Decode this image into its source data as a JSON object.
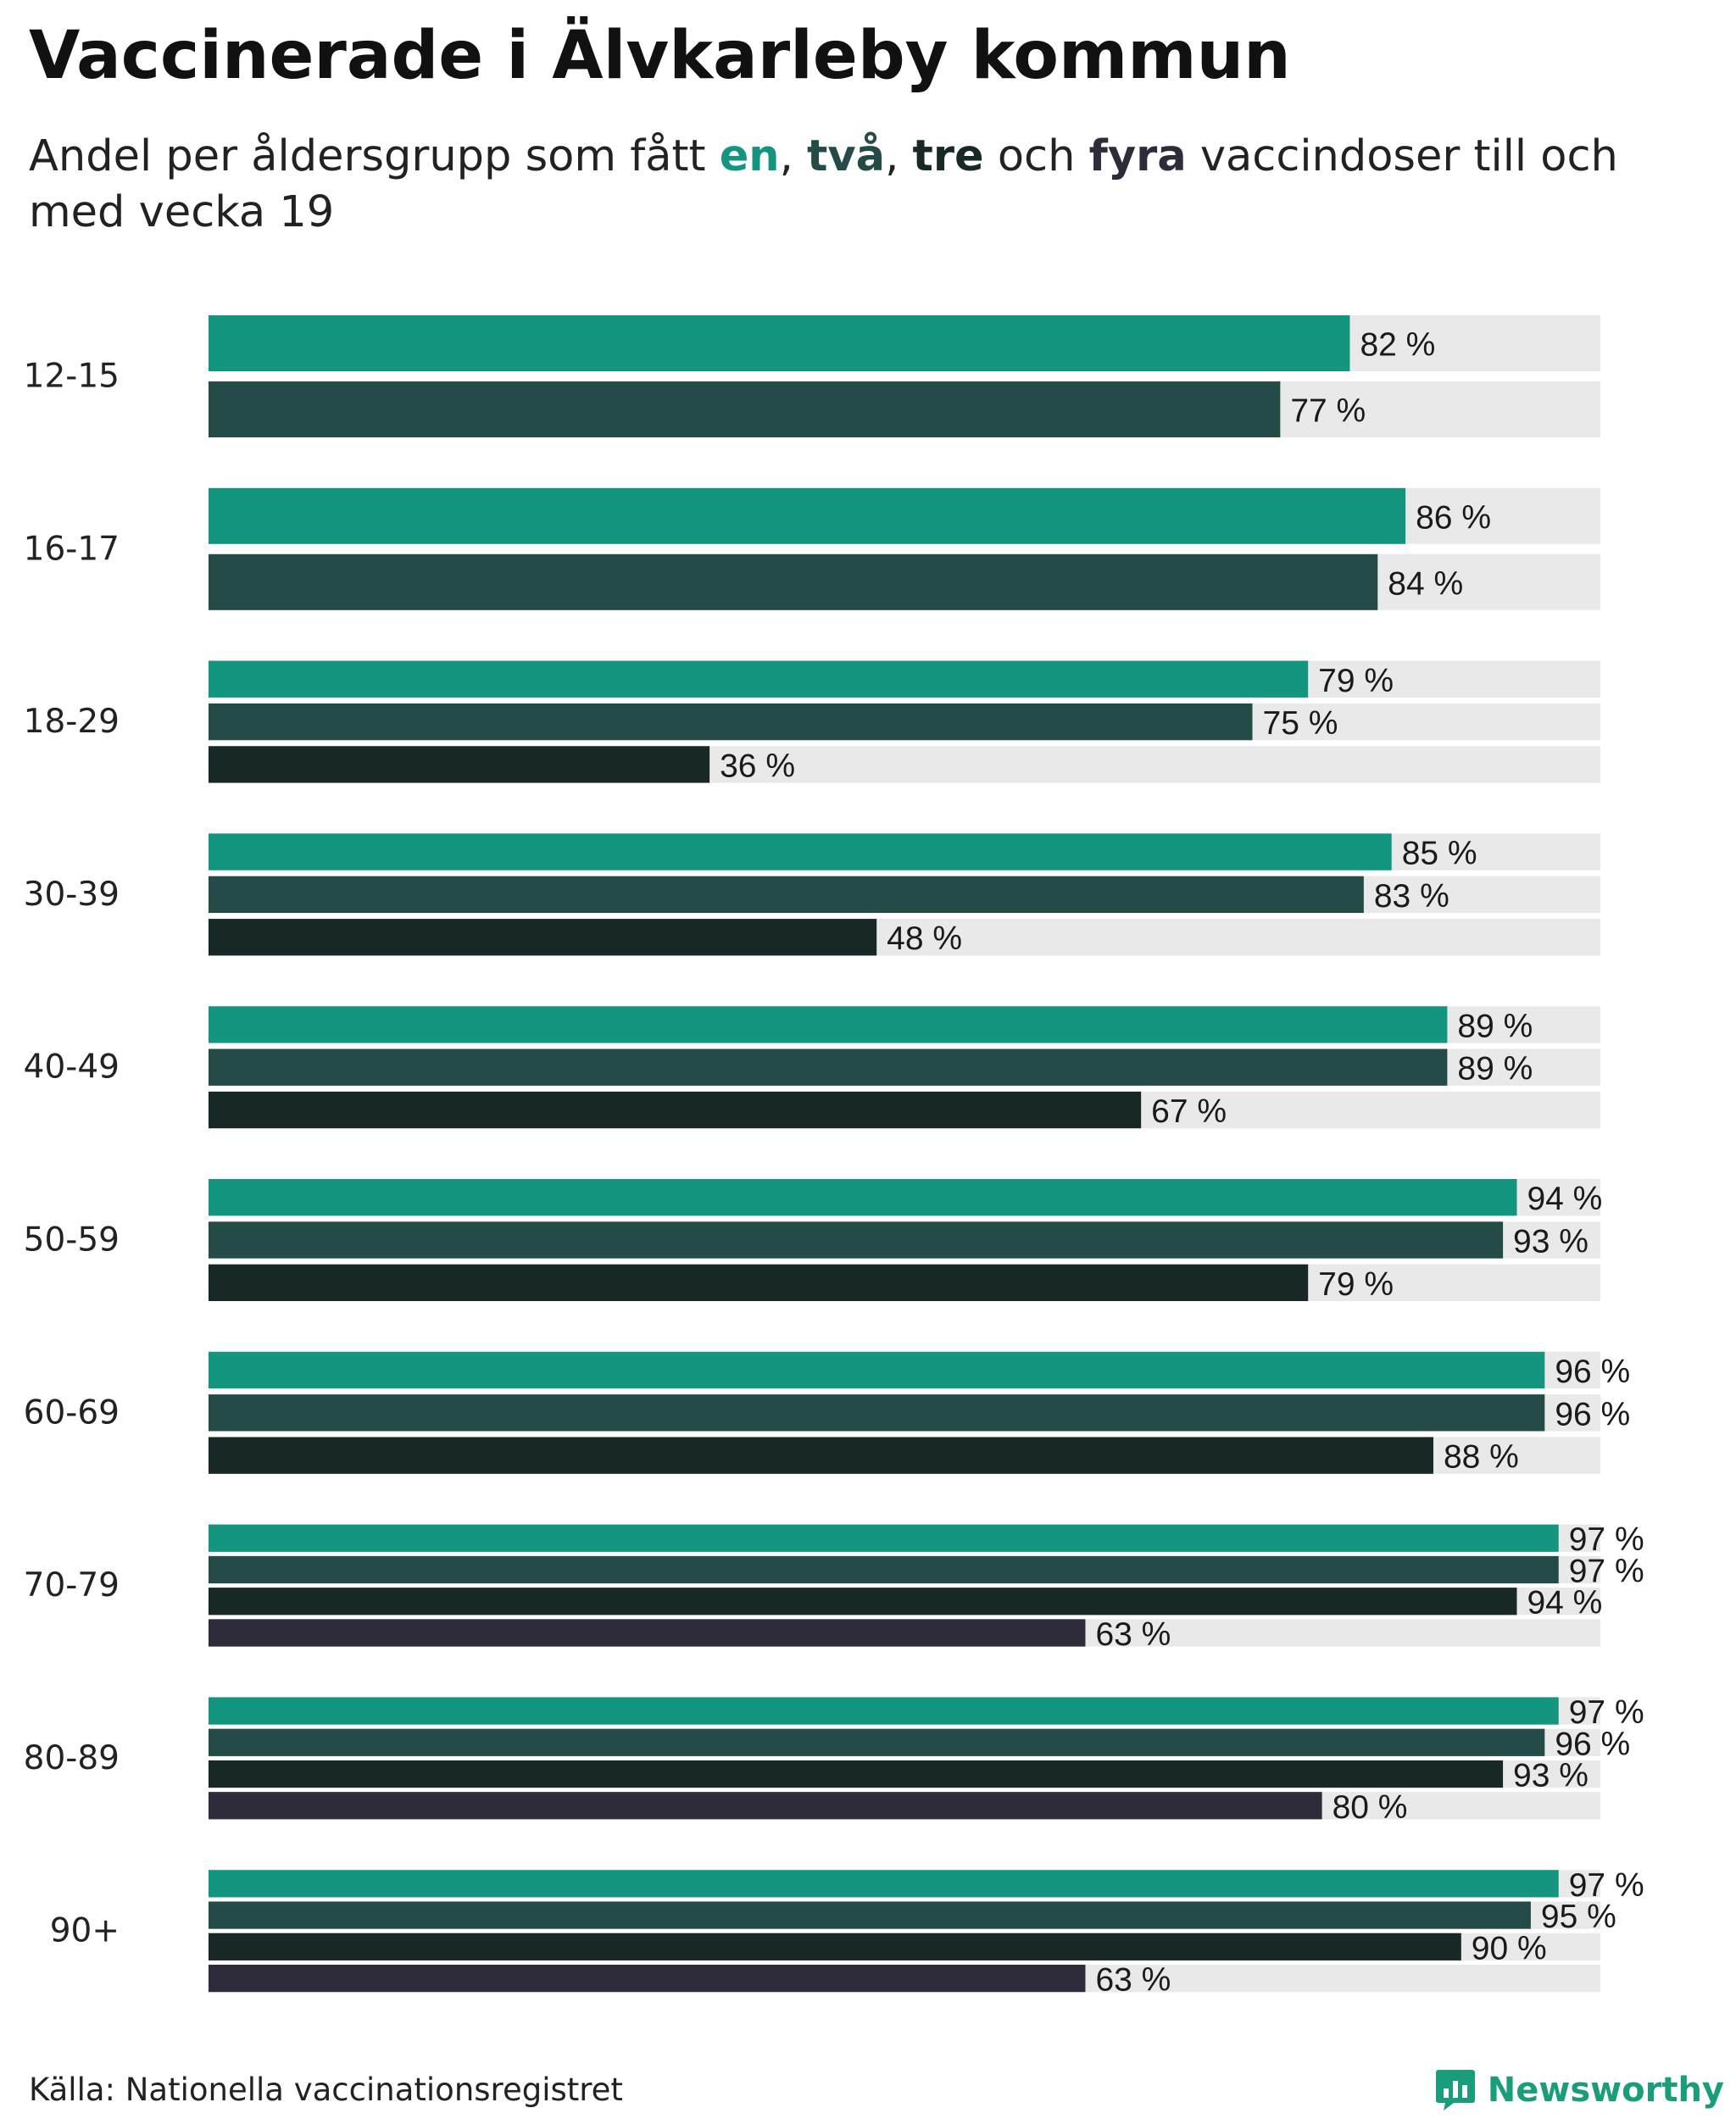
{
  "title": "Vaccinerade i Älvkarleby kommun",
  "subtitle": {
    "before": "Andel per åldersgrupp som fått ",
    "dose1": "en",
    "sep1": ", ",
    "dose2": "två",
    "sep2": ", ",
    "dose3": "tre",
    "mid": " och ",
    "dose4": "fyra",
    "after": " vaccindoser till och med vecka 19"
  },
  "source": "Källa: Nationella vaccinationsregistret",
  "brand": "Newsworthy",
  "brand_icon": "newsworthy-logo-icon",
  "colors": {
    "dose1": "#13957f",
    "dose2": "#254b48",
    "dose3": "#182826",
    "dose4": "#2e2c3a",
    "track": "#e9e9e9",
    "brand": "#1a9d7b"
  },
  "chart_data": {
    "type": "bar",
    "orientation": "horizontal",
    "xlim": [
      0,
      100
    ],
    "unit": "%",
    "value_format": "{v} %",
    "grid": false,
    "categories": [
      "12-15",
      "16-17",
      "18-29",
      "30-39",
      "40-49",
      "50-59",
      "60-69",
      "70-79",
      "80-89",
      "90+"
    ],
    "series": [
      {
        "key": "dose1",
        "values": [
          82,
          86,
          79,
          85,
          89,
          94,
          96,
          97,
          97,
          97
        ]
      },
      {
        "key": "dose2",
        "values": [
          77,
          84,
          75,
          83,
          89,
          93,
          96,
          97,
          96,
          95
        ]
      },
      {
        "key": "dose3",
        "values": [
          null,
          null,
          36,
          48,
          67,
          79,
          88,
          94,
          93,
          90
        ]
      },
      {
        "key": "dose4",
        "values": [
          null,
          null,
          null,
          null,
          null,
          null,
          null,
          63,
          80,
          63
        ]
      }
    ]
  }
}
